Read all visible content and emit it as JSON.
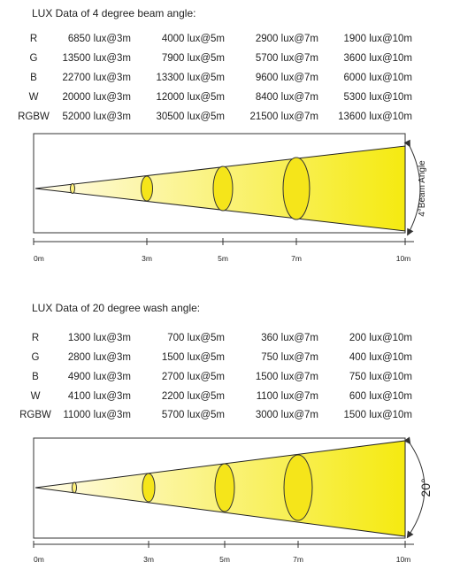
{
  "sections": [
    {
      "title": "LUX Data of 4 degree beam angle:",
      "rows": [
        {
          "label": "R",
          "values": [
            "6850 lux@3m",
            "4000 lux@5m",
            "2900 lux@7m",
            "1900 lux@10m"
          ]
        },
        {
          "label": "G",
          "values": [
            "13500 lux@3m",
            "7900 lux@5m",
            "5700 lux@7m",
            "3600 lux@10m"
          ]
        },
        {
          "label": "B",
          "values": [
            "22700 lux@3m",
            "13300 lux@5m",
            "9600 lux@7m",
            "6000 lux@10m"
          ]
        },
        {
          "label": "W",
          "values": [
            "20000 lux@3m",
            "12000 lux@5m",
            "8400 lux@7m",
            "5300 lux@10m"
          ]
        },
        {
          "label": "RGBW",
          "values": [
            "52000 lux@3m",
            "30500 lux@5m",
            "21500 lux@7m",
            "13600 lux@10m"
          ]
        }
      ],
      "angle_label": "4°Beam Angle",
      "distance_labels": [
        "0m",
        "3m",
        "5m",
        "7m",
        "10m"
      ]
    },
    {
      "title": "LUX Data of 20 degree wash angle:",
      "rows": [
        {
          "label": "R",
          "values": [
            "1300 lux@3m",
            "700 lux@5m",
            "360 lux@7m",
            "200 lux@10m"
          ]
        },
        {
          "label": "G",
          "values": [
            "2800 lux@3m",
            "1500 lux@5m",
            "750 lux@7m",
            "400 lux@10m"
          ]
        },
        {
          "label": "B",
          "values": [
            "4900 lux@3m",
            "2700 lux@5m",
            "1500 lux@7m",
            "750 lux@10m"
          ]
        },
        {
          "label": "W",
          "values": [
            "4100 lux@3m",
            "2200 lux@5m",
            "1100 lux@7m",
            "600 lux@10m"
          ]
        },
        {
          "label": "RGBW",
          "values": [
            "11000 lux@3m",
            "5700 lux@5m",
            "3000 lux@7m",
            "1500 lux@10m"
          ]
        }
      ],
      "angle_label": "20°",
      "distance_labels": [
        "0m",
        "3m",
        "5m",
        "7m",
        "10m"
      ]
    }
  ],
  "colors": {
    "beam_light": "#fffde0",
    "beam_dark": "#f7ec1c",
    "ellipse_fill": "#f5e51a",
    "outline": "#333333"
  }
}
